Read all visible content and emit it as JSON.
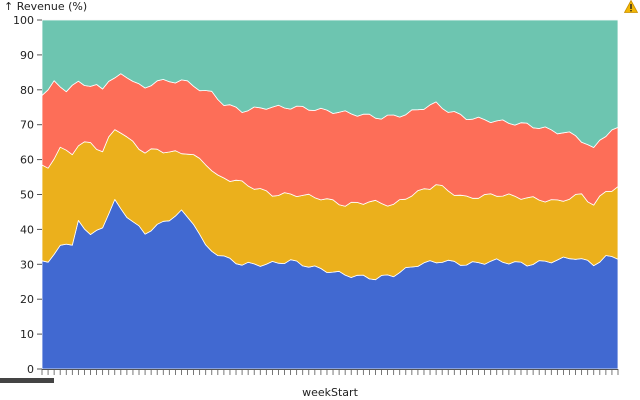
{
  "chart_data": {
    "type": "area",
    "stacked": true,
    "ylabel": "↑ Revenue (%)",
    "xlabel": "weekStart",
    "ylim": [
      0,
      100
    ],
    "yticks": [
      0,
      10,
      20,
      30,
      40,
      50,
      60,
      70,
      80,
      90,
      100
    ],
    "n_points": 96,
    "series": [
      {
        "color": "#4169d1",
        "keyframes": [
          [
            0,
            31
          ],
          [
            1,
            30
          ],
          [
            3,
            36
          ],
          [
            5,
            35
          ],
          [
            6,
            43
          ],
          [
            8,
            38
          ],
          [
            10,
            41
          ],
          [
            12,
            48
          ],
          [
            13,
            46
          ],
          [
            15,
            42
          ],
          [
            17,
            39
          ],
          [
            20,
            42
          ],
          [
            23,
            45
          ],
          [
            25,
            42
          ],
          [
            27,
            35
          ],
          [
            30,
            32
          ],
          [
            33,
            30
          ],
          [
            37,
            30
          ],
          [
            41,
            31
          ],
          [
            45,
            29
          ],
          [
            50,
            27
          ],
          [
            55,
            26
          ],
          [
            58,
            27
          ],
          [
            62,
            30
          ],
          [
            66,
            31
          ],
          [
            70,
            30
          ],
          [
            75,
            31
          ],
          [
            80,
            30
          ],
          [
            84,
            31
          ],
          [
            88,
            32
          ],
          [
            91,
            30
          ],
          [
            93,
            32
          ],
          [
            95,
            32
          ]
        ]
      },
      {
        "color": "#ebb01c",
        "keyframes": [
          [
            0,
            58
          ],
          [
            1,
            58
          ],
          [
            3,
            63
          ],
          [
            5,
            62
          ],
          [
            6,
            64
          ],
          [
            8,
            65
          ],
          [
            10,
            62
          ],
          [
            11,
            66
          ],
          [
            12,
            69
          ],
          [
            13,
            68
          ],
          [
            14,
            66
          ],
          [
            15,
            65
          ],
          [
            17,
            62
          ],
          [
            19,
            63
          ],
          [
            21,
            62
          ],
          [
            24,
            62
          ],
          [
            27,
            59
          ],
          [
            29,
            55
          ],
          [
            32,
            54
          ],
          [
            35,
            52
          ],
          [
            38,
            50
          ],
          [
            42,
            50
          ],
          [
            46,
            49
          ],
          [
            50,
            47
          ],
          [
            54,
            48
          ],
          [
            58,
            47
          ],
          [
            61,
            50
          ],
          [
            64,
            52
          ],
          [
            65,
            53
          ],
          [
            67,
            51
          ],
          [
            70,
            49
          ],
          [
            75,
            50
          ],
          [
            80,
            49
          ],
          [
            85,
            48
          ],
          [
            89,
            50
          ],
          [
            91,
            47
          ],
          [
            93,
            51
          ],
          [
            95,
            52
          ]
        ]
      },
      {
        "color": "#fd6e58",
        "keyframes": [
          [
            0,
            79
          ],
          [
            1,
            80
          ],
          [
            2,
            82
          ],
          [
            4,
            80
          ],
          [
            6,
            82
          ],
          [
            9,
            81
          ],
          [
            10,
            80
          ],
          [
            11,
            83
          ],
          [
            13,
            84
          ],
          [
            15,
            83
          ],
          [
            17,
            80
          ],
          [
            19,
            83
          ],
          [
            21,
            82
          ],
          [
            23,
            83
          ],
          [
            25,
            81
          ],
          [
            28,
            79
          ],
          [
            30,
            76
          ],
          [
            33,
            74
          ],
          [
            37,
            75
          ],
          [
            42,
            75
          ],
          [
            47,
            74
          ],
          [
            52,
            73
          ],
          [
            56,
            72
          ],
          [
            60,
            73
          ],
          [
            63,
            75
          ],
          [
            65,
            76
          ],
          [
            67,
            74
          ],
          [
            70,
            72
          ],
          [
            75,
            71
          ],
          [
            80,
            70
          ],
          [
            85,
            68
          ],
          [
            88,
            67
          ],
          [
            90,
            64
          ],
          [
            91,
            63
          ],
          [
            92,
            66
          ],
          [
            95,
            69
          ]
        ]
      },
      {
        "color": "#6dc5b0",
        "keyframes": [
          [
            0,
            100
          ],
          [
            95,
            100
          ]
        ]
      }
    ]
  }
}
